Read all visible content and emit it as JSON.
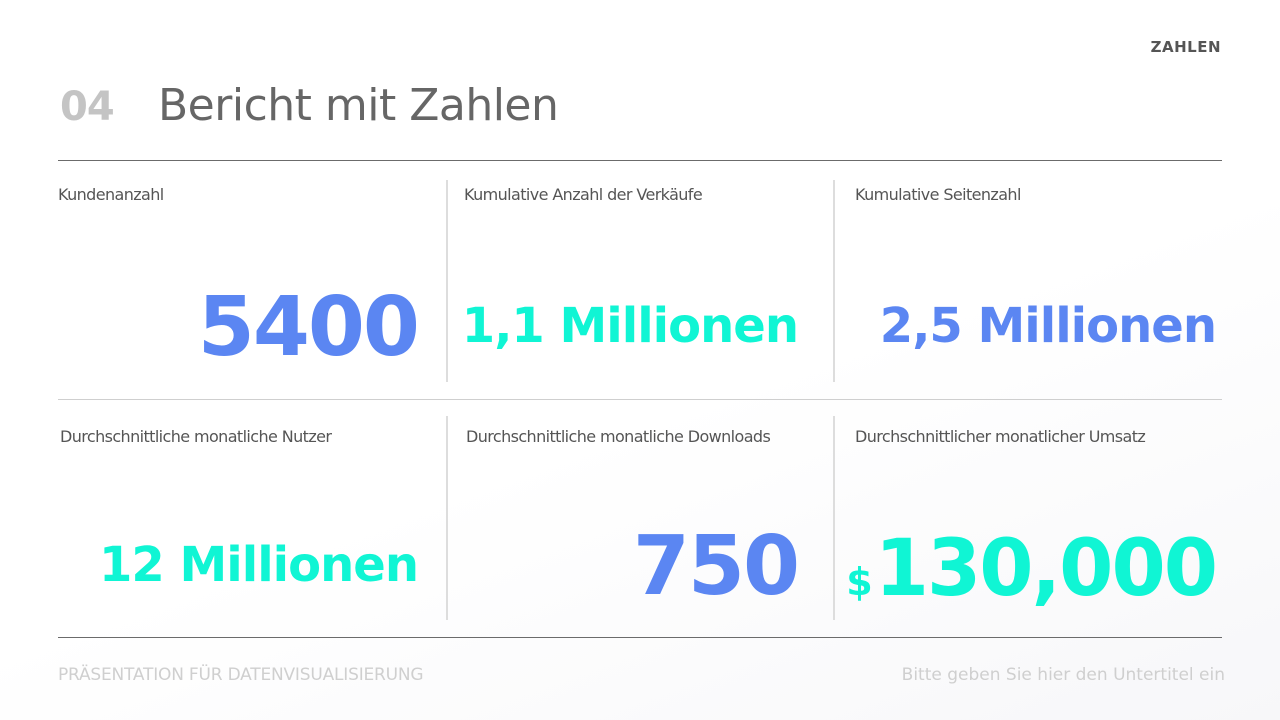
{
  "header": {
    "section_tag": "ZAHLEN",
    "number": "04",
    "title": "Bericht mit Zahlen"
  },
  "metrics": [
    {
      "label": "Kundenanzahl",
      "value": "5400",
      "color": "#5b86f2"
    },
    {
      "label": "Kumulative Anzahl der Verkäufe",
      "value": "1,1 Millionen",
      "color": "#10f5d4"
    },
    {
      "label": "Kumulative Seitenzahl",
      "value": "2,5 Millionen",
      "color": "#5b86f2"
    },
    {
      "label": "Durchschnittliche monatliche Nutzer",
      "value": "12 Millionen",
      "color": "#10f5d4"
    },
    {
      "label": "Durchschnittliche monatliche Downloads",
      "value": "750",
      "color": "#5b86f2"
    },
    {
      "label": "Durchschnittlicher monatlicher Umsatz",
      "currency": "$",
      "value": "130,000",
      "color": "#10f5d4"
    }
  ],
  "footer": {
    "left": "PRÄSENTATION FÜR DATENVISUALISIERUNG",
    "right": "Bitte geben Sie hier den Untertitel ein"
  }
}
